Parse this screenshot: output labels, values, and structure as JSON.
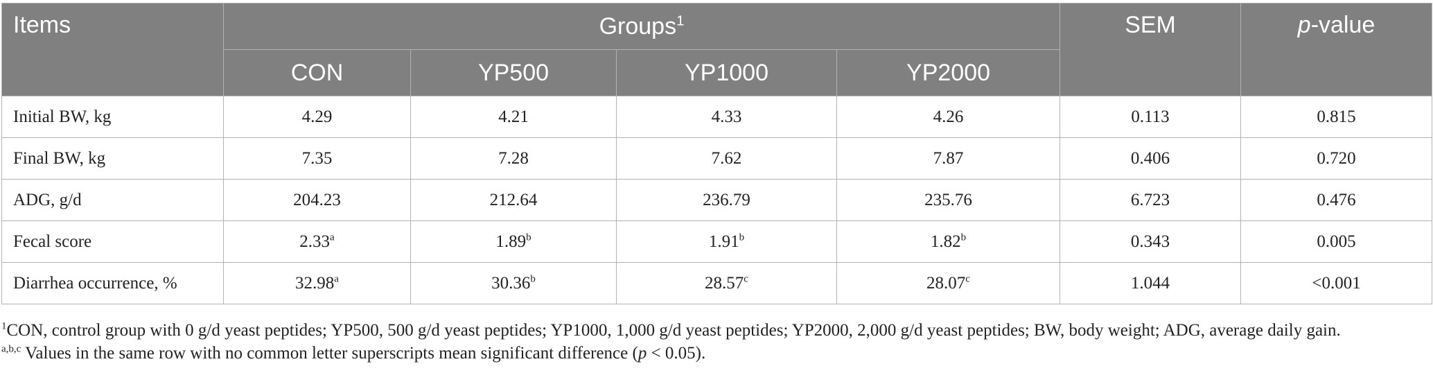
{
  "header": {
    "items": "Items",
    "groups": "Groups",
    "groups_sup": "1",
    "sem": "SEM",
    "pvalue_italic": "p",
    "pvalue_rest": "-value",
    "subgroups": [
      "CON",
      "YP500",
      "YP1000",
      "YP2000"
    ]
  },
  "rows": [
    {
      "label": "Initial BW, kg",
      "values": [
        {
          "v": "4.29",
          "s": ""
        },
        {
          "v": "4.21",
          "s": ""
        },
        {
          "v": "4.33",
          "s": ""
        },
        {
          "v": "4.26",
          "s": ""
        }
      ],
      "sem": "0.113",
      "p": "0.815"
    },
    {
      "label": "Final BW, kg",
      "values": [
        {
          "v": "7.35",
          "s": ""
        },
        {
          "v": "7.28",
          "s": ""
        },
        {
          "v": "7.62",
          "s": ""
        },
        {
          "v": "7.87",
          "s": ""
        }
      ],
      "sem": "0.406",
      "p": "0.720"
    },
    {
      "label": "ADG, g/d",
      "values": [
        {
          "v": "204.23",
          "s": ""
        },
        {
          "v": "212.64",
          "s": ""
        },
        {
          "v": "236.79",
          "s": ""
        },
        {
          "v": "235.76",
          "s": ""
        }
      ],
      "sem": "6.723",
      "p": "0.476"
    },
    {
      "label": "Fecal score",
      "values": [
        {
          "v": "2.33",
          "s": "a"
        },
        {
          "v": "1.89",
          "s": "b"
        },
        {
          "v": "1.91",
          "s": "b"
        },
        {
          "v": "1.82",
          "s": "b"
        }
      ],
      "sem": "0.343",
      "p": "0.005"
    },
    {
      "label": "Diarrhea occurrence, %",
      "values": [
        {
          "v": "32.98",
          "s": "a"
        },
        {
          "v": "30.36",
          "s": "b"
        },
        {
          "v": "28.57",
          "s": "c"
        },
        {
          "v": "28.07",
          "s": "c"
        }
      ],
      "sem": "1.044",
      "p": "<0.001"
    }
  ],
  "footnotes": {
    "note1_sup": "1",
    "note1_text": "CON, control group with 0 g/d yeast peptides; YP500, 500 g/d yeast peptides; YP1000, 1,000 g/d yeast peptides; YP2000, 2,000 g/d yeast peptides; BW, body weight; ADG, average daily gain.",
    "note2_sup": "a,b,c",
    "note2_text_a": " Values in the same row with no common letter superscripts mean significant difference (",
    "note2_text_italic": "p",
    "note2_text_b": " < 0.05)."
  }
}
